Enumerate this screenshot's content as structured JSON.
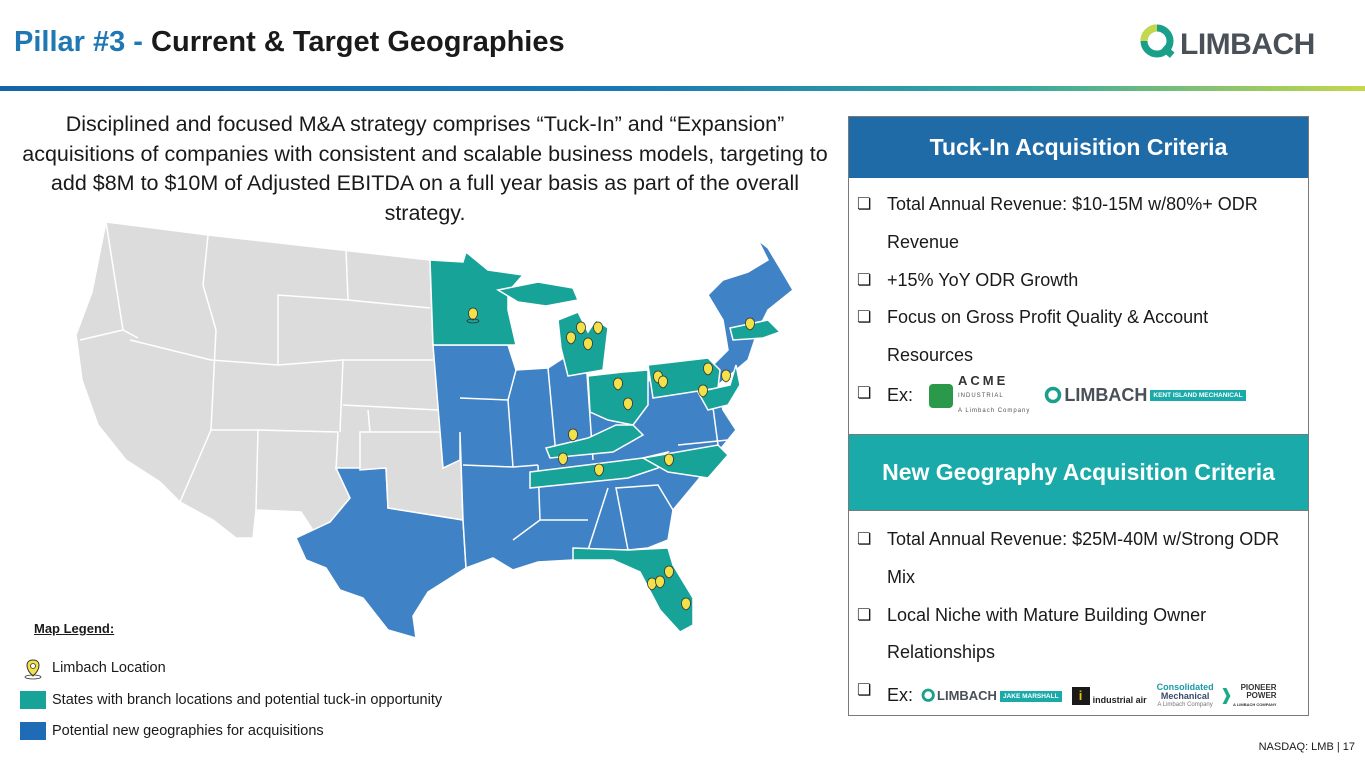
{
  "header": {
    "pillar": "Pillar #3 -",
    "title": "Current & Target Geographies",
    "logo_text": "LIMBACH"
  },
  "intro": "Disciplined and focused M&A strategy comprises “Tuck-In” and “Expansion” acquisitions of companies with consistent and scalable business models, targeting to add $8M to $10M of Adjusted EBITDA on a full year basis as part of the overall strategy.",
  "legend": {
    "title": "Map Legend:",
    "items": [
      {
        "label": "Limbach Location",
        "icon": "map-pin-icon",
        "color": "#f2e24a"
      },
      {
        "label": "States with branch locations and potential tuck-in opportunity",
        "color": "#17a398"
      },
      {
        "label": "Potential new geographies for acquisitions",
        "color": "#1f6bb5"
      }
    ]
  },
  "colors": {
    "gray_state": "#dcdcdc",
    "tuckin_state": "#17a398",
    "new_geo_state": "#3f82c6",
    "pin": "#f2e24a"
  },
  "tuckin": {
    "heading": "Tuck-In Acquisition Criteria",
    "bullets": [
      "Total Annual Revenue: $10-15M w/80%+ ODR Revenue",
      "+15% YoY ODR Growth",
      "Focus on Gross Profit Quality & Account Resources"
    ],
    "ex_label": "Ex:",
    "example_logos": {
      "acme": "ACME",
      "acme_line2": "INDUSTRIAL",
      "acme_line3": "A Limbach Company",
      "limbach": "LIMBACH",
      "kent": "KENT ISLAND MECHANICAL"
    }
  },
  "newgeo": {
    "heading": "New Geography Acquisition Criteria",
    "bullets": [
      "Total Annual Revenue: $25M-40M w/Strong ODR Mix",
      "Local Niche with Mature Building Owner Relationships"
    ],
    "ex_label": "Ex:",
    "example_logos": {
      "limbach": "LIMBACH",
      "jake": "JAKE MARSHALL",
      "ia": "i",
      "ia_text": "industrial air",
      "cm1": "Consolidated",
      "cm2": "Mechanical",
      "cm3": "A Limbach Company",
      "pp1": "PIONEER",
      "pp2": "POWER",
      "pp3": "A LIMBACH COMPANY"
    }
  },
  "footer": "NASDAQ: LMB | 17"
}
